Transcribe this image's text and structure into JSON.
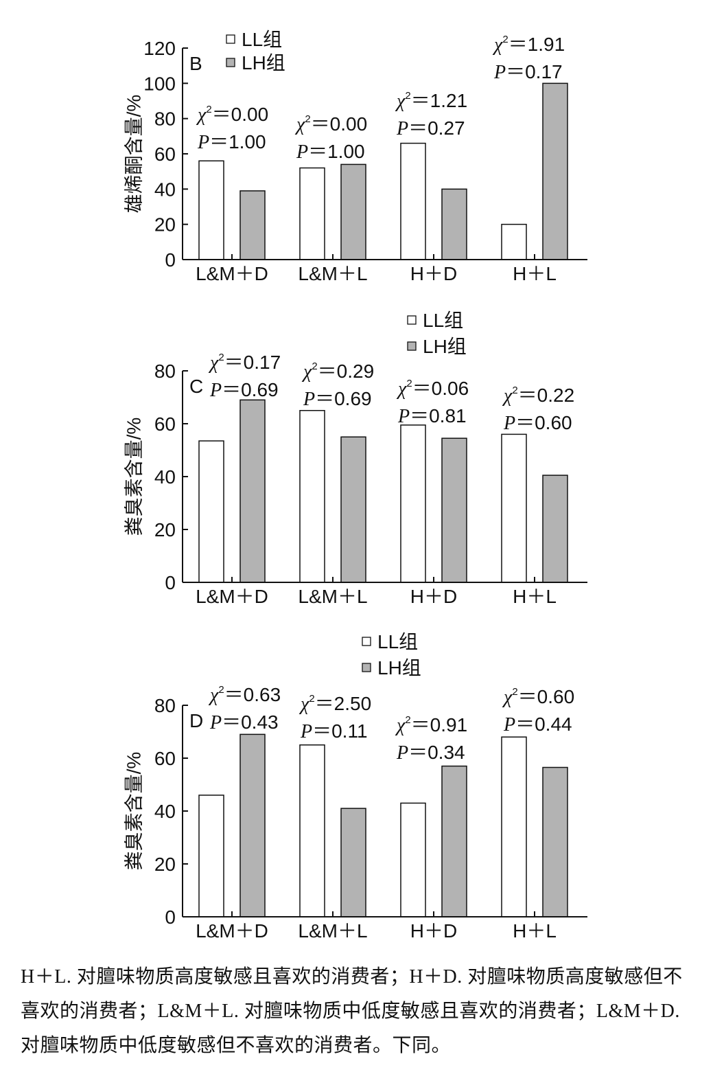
{
  "chart_data": [
    {
      "type": "bar",
      "panel_label": "B",
      "ylabel": "雄烯酮含量/%",
      "ylim": [
        0,
        120
      ],
      "yticks": [
        "0",
        "20",
        "40",
        "60",
        "80",
        "100",
        "120"
      ],
      "categories": [
        "L&M＋D",
        "L&M＋L",
        "H＋D",
        "H＋L"
      ],
      "series": [
        {
          "name": "LL组",
          "color": "#ffffff",
          "values": [
            56,
            52,
            66,
            20
          ]
        },
        {
          "name": "LH组",
          "color": "#b3b3b3",
          "values": [
            39,
            54,
            40,
            100
          ]
        }
      ],
      "stats": [
        {
          "chi2": "0.00",
          "p": "1.00"
        },
        {
          "chi2": "0.00",
          "p": "1.00"
        },
        {
          "chi2": "1.21",
          "p": "0.27"
        },
        {
          "chi2": "1.91",
          "p": "0.17"
        }
      ],
      "legend_position": "top-left",
      "grid": false
    },
    {
      "type": "bar",
      "panel_label": "C",
      "ylabel": "粪臭素含量/%",
      "ylim": [
        0,
        80
      ],
      "yticks": [
        "0",
        "20",
        "40",
        "60",
        "80"
      ],
      "categories": [
        "L&M＋D",
        "L&M＋L",
        "H＋D",
        "H＋L"
      ],
      "series": [
        {
          "name": "LL组",
          "color": "#ffffff",
          "values": [
            53.5,
            65,
            59.5,
            56
          ]
        },
        {
          "name": "LH组",
          "color": "#b3b3b3",
          "values": [
            69,
            55,
            54.5,
            40.5
          ]
        }
      ],
      "stats": [
        {
          "chi2": "0.17",
          "p": "0.69"
        },
        {
          "chi2": "0.29",
          "p": "0.69"
        },
        {
          "chi2": "0.06",
          "p": "0.81"
        },
        {
          "chi2": "0.22",
          "p": "0.60"
        }
      ],
      "legend_position": "top-right",
      "grid": false
    },
    {
      "type": "bar",
      "panel_label": "D",
      "ylabel": "粪臭素含量/%",
      "ylim": [
        0,
        80
      ],
      "yticks": [
        "0",
        "20",
        "40",
        "60",
        "80"
      ],
      "categories": [
        "L&M＋D",
        "L&M＋L",
        "H＋D",
        "H＋L"
      ],
      "series": [
        {
          "name": "LL组",
          "color": "#ffffff",
          "values": [
            46,
            65,
            43,
            68
          ]
        },
        {
          "name": "LH组",
          "color": "#b3b3b3",
          "values": [
            69,
            41,
            57,
            56.5
          ]
        }
      ],
      "stats": [
        {
          "chi2": "0.63",
          "p": "0.43"
        },
        {
          "chi2": "2.50",
          "p": "0.11"
        },
        {
          "chi2": "0.91",
          "p": "0.34"
        },
        {
          "chi2": "0.60",
          "p": "0.44"
        }
      ],
      "legend_position": "top-center",
      "grid": false
    }
  ],
  "caption": "H＋L. 对膻味物质高度敏感且喜欢的消费者；H＋D. 对膻味物质高度敏感但不喜欢的消费者；L&M＋L. 对膻味物质中低度敏感且喜欢的消费者；L&M＋D. 对膻味物质中低度敏感但不喜欢的消费者。下同。"
}
